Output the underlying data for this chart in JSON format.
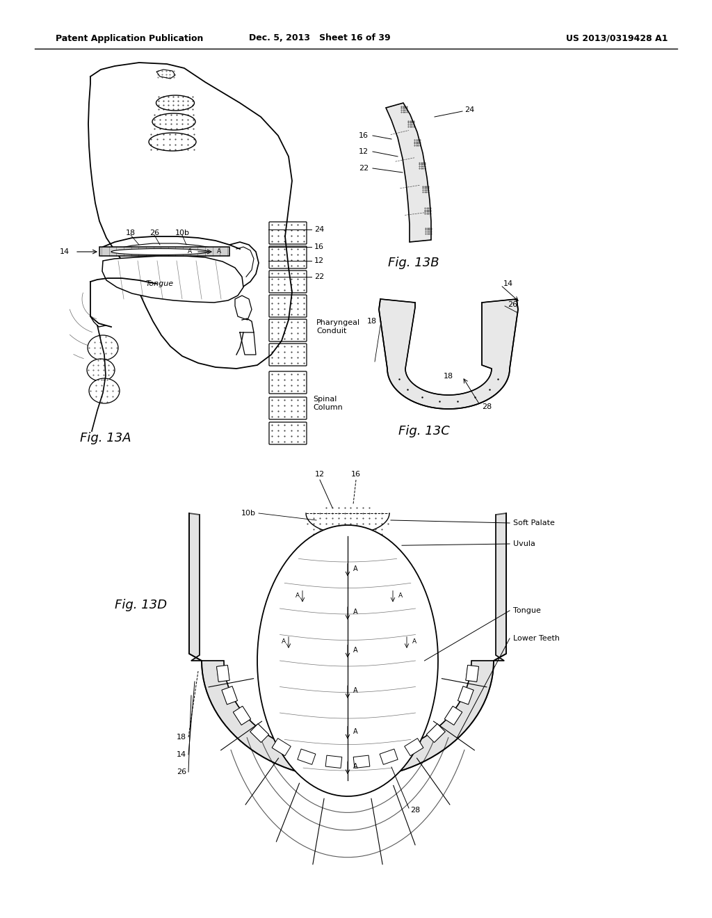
{
  "bg_color": "#ffffff",
  "header_left": "Patent Application Publication",
  "header_mid": "Dec. 5, 2013   Sheet 16 of 39",
  "header_right": "US 2013/0319428 A1",
  "fig13A_label": "Fig. 13A",
  "fig13B_label": "Fig. 13B",
  "fig13C_label": "Fig. 13C",
  "fig13D_label": "Fig. 13D"
}
